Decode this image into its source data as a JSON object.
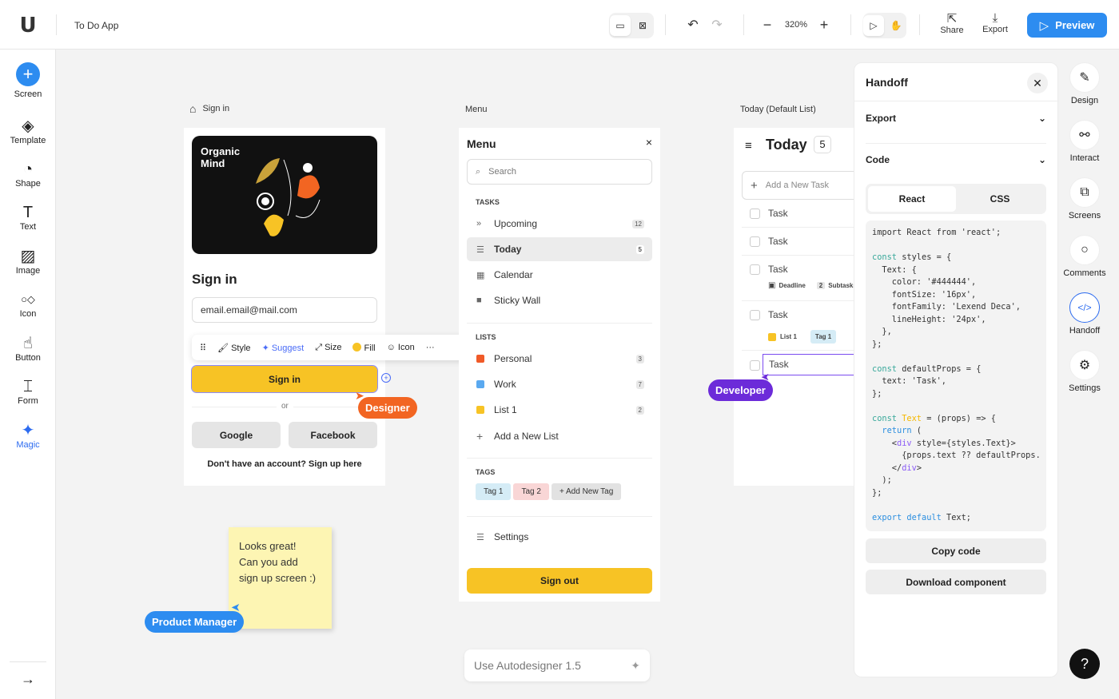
{
  "topbar": {
    "app_title": "To Do App",
    "zoom": "320%",
    "share": "Share",
    "export": "Export",
    "preview": "Preview"
  },
  "sidebar": {
    "items": [
      {
        "label": "Screen",
        "icon": "plus-icon"
      },
      {
        "label": "Template",
        "icon": "layers-icon"
      },
      {
        "label": "Shape",
        "icon": "shape-icon"
      },
      {
        "label": "Text",
        "icon": "text-icon"
      },
      {
        "label": "Image",
        "icon": "image-icon"
      },
      {
        "label": "Icon",
        "icon": "icon-icon"
      },
      {
        "label": "Button",
        "icon": "button-icon"
      },
      {
        "label": "Form",
        "icon": "form-icon"
      },
      {
        "label": "Magic",
        "icon": "sparkle-icon"
      }
    ]
  },
  "signin": {
    "frame_label": "Sign in",
    "brand": "Organic\nMind",
    "title": "Sign in",
    "email": "email.email@mail.com",
    "button": "Sign in",
    "or": "or",
    "google": "Google",
    "facebook": "Facebook",
    "signup": "Don't have an account? Sign up here",
    "toolbar": {
      "style": "Style",
      "suggest": "Suggest",
      "size": "Size",
      "fill": "Fill",
      "icon": "Icon",
      "more": "···"
    }
  },
  "menu": {
    "frame_label": "Menu",
    "title": "Menu",
    "close": "×",
    "search_placeholder": "Search",
    "tasks_header": "TASKS",
    "tasks": [
      {
        "label": "Upcoming",
        "count": "12",
        "icon": "»"
      },
      {
        "label": "Today",
        "count": "5",
        "icon": "☰"
      },
      {
        "label": "Calendar",
        "icon": "▦"
      },
      {
        "label": "Sticky Wall",
        "icon": "■"
      }
    ],
    "lists_header": "LISTS",
    "lists": [
      {
        "label": "Personal",
        "count": "3",
        "color": "#f05a28"
      },
      {
        "label": "Work",
        "count": "7",
        "color": "#5aa9f0"
      },
      {
        "label": "List 1",
        "count": "2",
        "color": "#f7c325"
      }
    ],
    "add_list": "Add a New List",
    "tags_header": "TAGS",
    "tags": [
      "Tag 1",
      "Tag 2",
      "+ Add New Tag"
    ],
    "settings": "Settings",
    "signout": "Sign out"
  },
  "today": {
    "frame_label": "Today (Default List)",
    "title": "Today",
    "count": "5",
    "add": "Add a New Task",
    "tasks": [
      "Task",
      "Task",
      "Task",
      "Task",
      "Task"
    ],
    "deadline": "Deadline",
    "subtasks_count": "2",
    "subtasks": "Subtasks",
    "list": "List 1",
    "tag": "Tag 1"
  },
  "collaborators": {
    "designer": "Designer",
    "developer": "Developer",
    "pm": "Product Manager"
  },
  "sticky": {
    "text": "Looks great!\nCan you add\nsign up screen :)"
  },
  "autodesigner": {
    "placeholder": "Use Autodesigner 1.5"
  },
  "handoff": {
    "title": "Handoff",
    "export": "Export",
    "code": "Code",
    "tabs": [
      "React",
      "CSS"
    ],
    "copy": "Copy code",
    "download": "Download component",
    "code_lines": [
      "import React from 'react';",
      "",
      "const styles = {",
      "  Text: {",
      "    color: '#444444',",
      "    fontSize: '16px',",
      "    fontFamily: 'Lexend Deca',",
      "    lineHeight: '24px',",
      "  },",
      "};",
      "",
      "const defaultProps = {",
      "  text: 'Task',",
      "};",
      "",
      "const Text = (props) => {",
      "  return (",
      "    <div style={styles.Text}>",
      "      {props.text ?? defaultProps.",
      "    </div>",
      "  );",
      "};",
      "",
      "export default Text;"
    ]
  },
  "rightrail": [
    {
      "label": "Design"
    },
    {
      "label": "Interact"
    },
    {
      "label": "Screens"
    },
    {
      "label": "Comments"
    },
    {
      "label": "Handoff"
    },
    {
      "label": "Settings"
    }
  ],
  "help": "?",
  "colors": {
    "accent": "#2d8cf0",
    "yellow": "#f7c325",
    "designer": "#f26522",
    "developer": "#6c2bd9",
    "pm": "#2d8cf0"
  }
}
